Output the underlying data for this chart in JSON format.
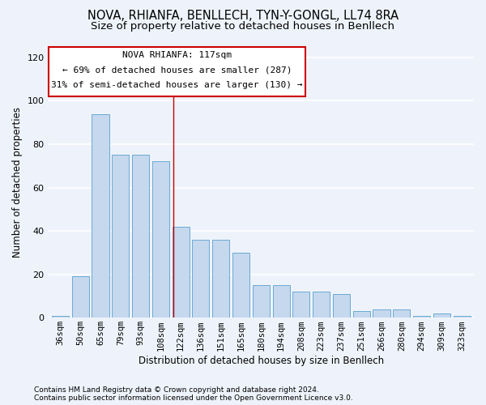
{
  "title": "NOVA, RHIANFA, BENLLECH, TYN-Y-GONGL, LL74 8RA",
  "subtitle": "Size of property relative to detached houses in Benllech",
  "xlabel": "Distribution of detached houses by size in Benllech",
  "ylabel": "Number of detached properties",
  "categories": [
    "36sqm",
    "50sqm",
    "65sqm",
    "79sqm",
    "93sqm",
    "108sqm",
    "122sqm",
    "136sqm",
    "151sqm",
    "165sqm",
    "180sqm",
    "194sqm",
    "208sqm",
    "223sqm",
    "237sqm",
    "251sqm",
    "266sqm",
    "280sqm",
    "294sqm",
    "309sqm",
    "323sqm"
  ],
  "values": [
    1,
    19,
    94,
    75,
    75,
    72,
    42,
    36,
    36,
    30,
    15,
    15,
    12,
    12,
    11,
    3,
    4,
    4,
    1,
    2,
    1
  ],
  "bar_color": "#c5d8ee",
  "bar_edge_color": "#6aaad4",
  "background_color": "#eef3fb",
  "grid_color": "#ffffff",
  "annotation_text_line1": "NOVA RHIANFA: 117sqm",
  "annotation_text_line2": "← 69% of detached houses are smaller (287)",
  "annotation_text_line3": "31% of semi-detached houses are larger (130) →",
  "annotation_box_color": "#ffffff",
  "annotation_box_edge": "#cc0000",
  "vline_color": "#cc0000",
  "footnote1": "Contains HM Land Registry data © Crown copyright and database right 2024.",
  "footnote2": "Contains public sector information licensed under the Open Government Licence v3.0.",
  "ylim_max": 125,
  "yticks": [
    0,
    20,
    40,
    60,
    80,
    100,
    120
  ],
  "title_fontsize": 10.5,
  "subtitle_fontsize": 9.5,
  "xlabel_fontsize": 8.5,
  "ylabel_fontsize": 8.5,
  "tick_fontsize": 7.5,
  "footnote_fontsize": 6.5,
  "ann_text_fontsize": 8.0,
  "vline_x": 5.64
}
